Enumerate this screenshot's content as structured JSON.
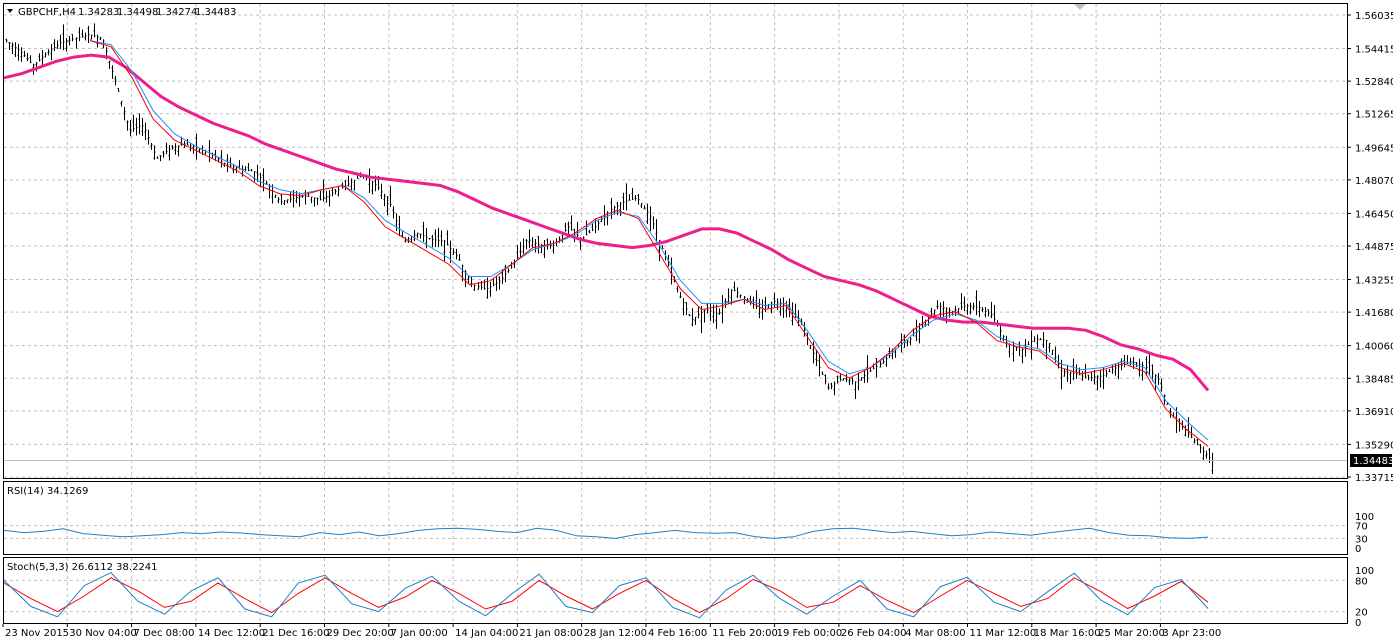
{
  "window": {
    "symbol_header": "GBPCHF,H4",
    "ohlc": [
      "1.34283",
      "1.34498",
      "1.34274",
      "1.34483"
    ],
    "colors": {
      "background": "#ffffff",
      "bars": "#000000",
      "ma_long": "#ee1e8c",
      "ma_fast": "#ff0000",
      "ma_mid": "#1e90ff",
      "rsi": "#1e7fc8",
      "stoch_main": "#1e7fc8",
      "stoch_signal": "#ff0000",
      "grid": "#c0c0c0"
    }
  },
  "price_panel": {
    "price_ticks": [
      "1.56035",
      "1.54415",
      "1.52840",
      "1.51265",
      "1.49645",
      "1.48070",
      "1.46450",
      "1.44875",
      "1.43255",
      "1.41680",
      "1.40060",
      "1.38485",
      "1.36910",
      "1.35290",
      "1.33715"
    ],
    "current_price_label": "1.34483",
    "grid": true
  },
  "rsi_panel": {
    "label": "RSI(14) 34.1269",
    "levels": [
      "100",
      "70",
      "30",
      "0"
    ]
  },
  "stoch_panel": {
    "label": "Stoch(5,3,3) 26.6112 38.2241",
    "levels": [
      "100",
      "80",
      "20",
      "0"
    ]
  },
  "time_axis": [
    "23 Nov 2015",
    "30 Nov 04:00",
    "7 Dec 08:00",
    "14 Dec 12:00",
    "21 Dec 16:00",
    "29 Dec 20:00",
    "7 Jan 00:00",
    "14 Jan 04:00",
    "21 Jan 08:00",
    "28 Jan 12:00",
    "4 Feb 16:00",
    "11 Feb 20:00",
    "19 Feb 00:00",
    "26 Feb 04:00",
    "4 Mar 08:00",
    "11 Mar 12:00",
    "18 Mar 16:00",
    "25 Mar 20:00",
    "3 Apr 23:00"
  ],
  "chart_data": [
    {
      "type": "ohlc",
      "title": "GBPCHF,H4",
      "ylim": [
        1.33715,
        1.56035
      ],
      "x_ticks": [
        "23 Nov 2015",
        "30 Nov 04:00",
        "7 Dec 08:00",
        "14 Dec 12:00",
        "21 Dec 16:00",
        "29 Dec 20:00",
        "7 Jan 00:00",
        "14 Jan 04:00",
        "21 Jan 08:00",
        "28 Jan 12:00",
        "4 Feb 16:00",
        "11 Feb 20:00",
        "19 Feb 00:00",
        "26 Feb 04:00",
        "4 Mar 08:00",
        "11 Mar 12:00",
        "18 Mar 16:00",
        "25 Mar 20:00",
        "3 Apr 23:00"
      ],
      "close_path": [
        1.548,
        1.543,
        1.536,
        1.542,
        1.547,
        1.549,
        1.551,
        1.549,
        1.527,
        1.505,
        1.507,
        1.491,
        1.496,
        1.498,
        1.496,
        1.493,
        1.488,
        1.486,
        1.485,
        1.479,
        1.47,
        1.472,
        1.473,
        1.471,
        1.475,
        1.479,
        1.483,
        1.478,
        1.469,
        1.451,
        1.455,
        1.452,
        1.451,
        1.443,
        1.43,
        1.428,
        1.432,
        1.44,
        1.452,
        1.449,
        1.449,
        1.458,
        1.452,
        1.458,
        1.466,
        1.47,
        1.472,
        1.463,
        1.445,
        1.427,
        1.413,
        1.418,
        1.416,
        1.428,
        1.423,
        1.418,
        1.422,
        1.42,
        1.412,
        1.395,
        1.38,
        1.385,
        1.383,
        1.388,
        1.393,
        1.4,
        1.404,
        1.412,
        1.42,
        1.417,
        1.42,
        1.419,
        1.415,
        1.402,
        1.398,
        1.404,
        1.403,
        1.388,
        1.387,
        1.385,
        1.386,
        1.39,
        1.393,
        1.391,
        1.385,
        1.367,
        1.36,
        1.352,
        1.345
      ],
      "series": [
        {
          "name": "MA long (magenta)",
          "values": [
            1.53,
            1.532,
            1.535,
            1.538,
            1.54,
            1.541,
            1.54,
            1.535,
            1.528,
            1.521,
            1.516,
            1.512,
            1.508,
            1.505,
            1.502,
            1.498,
            1.495,
            1.492,
            1.489,
            1.486,
            1.484,
            1.482,
            1.481,
            1.48,
            1.479,
            1.478,
            1.475,
            1.471,
            1.467,
            1.464,
            1.461,
            1.458,
            1.455,
            1.452,
            1.45,
            1.449,
            1.448,
            1.449,
            1.451,
            1.454,
            1.457,
            1.457,
            1.455,
            1.451,
            1.447,
            1.442,
            1.438,
            1.434,
            1.432,
            1.43,
            1.427,
            1.423,
            1.419,
            1.415,
            1.413,
            1.412,
            1.412,
            1.411,
            1.41,
            1.409,
            1.409,
            1.409,
            1.408,
            1.405,
            1.401,
            1.399,
            1.396,
            1.394,
            1.389,
            1.379
          ]
        },
        {
          "name": "MA fast (red)",
          "values": [
            1.548,
            1.545,
            1.53,
            1.51,
            1.5,
            1.495,
            1.49,
            1.485,
            1.478,
            1.474,
            1.473,
            1.476,
            1.478,
            1.47,
            1.458,
            1.452,
            1.446,
            1.44,
            1.43,
            1.432,
            1.44,
            1.448,
            1.45,
            1.455,
            1.462,
            1.466,
            1.462,
            1.445,
            1.428,
            1.418,
            1.42,
            1.423,
            1.418,
            1.42,
            1.405,
            1.39,
            1.385,
            1.39,
            1.398,
            1.408,
            1.415,
            1.417,
            1.412,
            1.403,
            1.4,
            1.398,
            1.39,
            1.387,
            1.389,
            1.392,
            1.388,
            1.37,
            1.36,
            1.352
          ]
        },
        {
          "name": "MA mid (blue)",
          "values": [
            1.548,
            1.546,
            1.533,
            1.514,
            1.503,
            1.497,
            1.492,
            1.487,
            1.48,
            1.476,
            1.474,
            1.476,
            1.478,
            1.472,
            1.461,
            1.455,
            1.449,
            1.443,
            1.434,
            1.434,
            1.44,
            1.447,
            1.45,
            1.454,
            1.461,
            1.465,
            1.463,
            1.449,
            1.432,
            1.421,
            1.421,
            1.423,
            1.42,
            1.421,
            1.408,
            1.393,
            1.387,
            1.39,
            1.397,
            1.406,
            1.413,
            1.416,
            1.413,
            1.405,
            1.401,
            1.399,
            1.392,
            1.389,
            1.39,
            1.393,
            1.39,
            1.374,
            1.364,
            1.355
          ]
        }
      ]
    },
    {
      "type": "line",
      "title": "RSI(14) 34.1269",
      "ylim": [
        0,
        100
      ],
      "levels": [
        30,
        70
      ],
      "series": [
        {
          "name": "RSI(14)",
          "values": [
            55,
            48,
            52,
            60,
            45,
            40,
            35,
            38,
            42,
            48,
            45,
            50,
            47,
            42,
            38,
            35,
            48,
            42,
            50,
            38,
            45,
            55,
            60,
            62,
            58,
            52,
            48,
            62,
            55,
            38,
            35,
            30,
            42,
            48,
            55,
            48,
            46,
            48,
            36,
            30,
            35,
            52,
            60,
            62,
            55,
            48,
            52,
            45,
            38,
            42,
            50,
            45,
            40,
            48,
            55,
            62,
            48,
            40,
            38,
            32,
            30,
            34
          ]
        }
      ]
    },
    {
      "type": "line",
      "title": "Stoch(5,3,3) 26.6112 38.2241",
      "ylim": [
        0,
        100
      ],
      "levels": [
        20,
        80
      ],
      "series": [
        {
          "name": "Stoch main",
          "values": [
            80,
            30,
            10,
            70,
            95,
            40,
            15,
            60,
            85,
            25,
            10,
            75,
            90,
            35,
            20,
            65,
            88,
            40,
            12,
            55,
            92,
            30,
            18,
            70,
            85,
            28,
            8,
            62,
            90,
            45,
            15,
            50,
            80,
            25,
            10,
            68,
            86,
            38,
            20,
            58,
            94,
            42,
            14,
            66,
            82,
            26
          ]
        },
        {
          "name": "Stoch signal",
          "values": [
            75,
            45,
            20,
            50,
            85,
            60,
            28,
            40,
            75,
            45,
            18,
            55,
            85,
            55,
            28,
            48,
            80,
            55,
            25,
            40,
            80,
            50,
            25,
            55,
            80,
            45,
            18,
            45,
            82,
            60,
            28,
            38,
            70,
            42,
            18,
            50,
            80,
            55,
            30,
            45,
            85,
            58,
            26,
            50,
            78,
            38
          ]
        }
      ]
    }
  ]
}
